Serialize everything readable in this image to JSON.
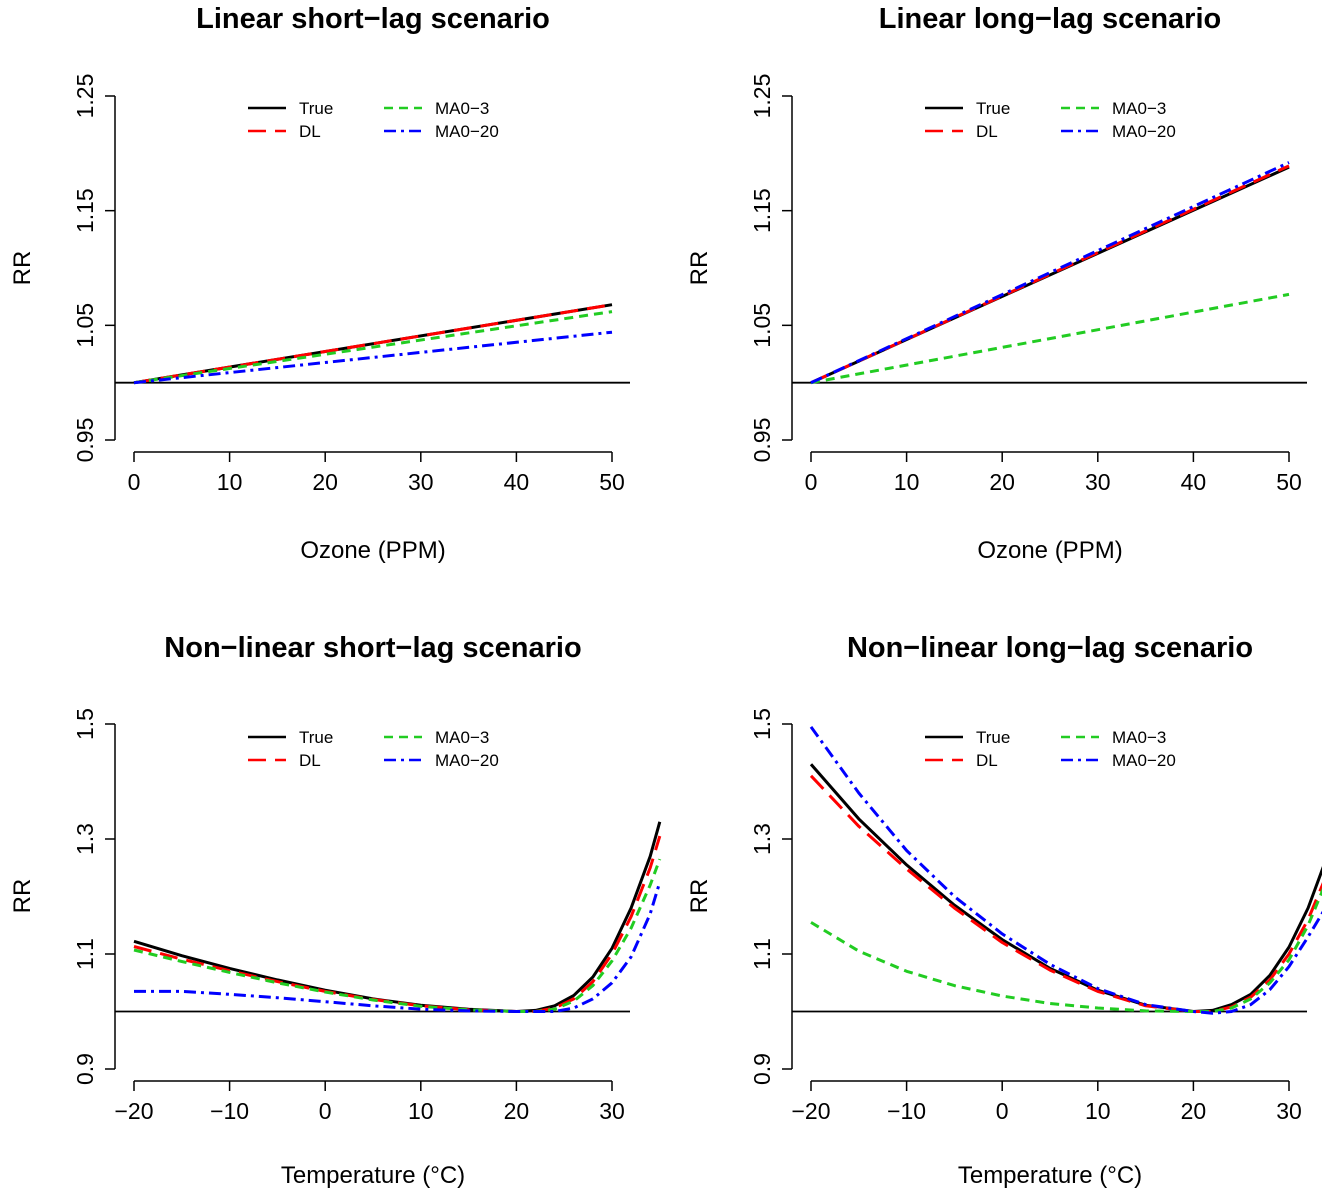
{
  "chart_data": [
    {
      "type": "line",
      "title": "Linear short−lag scenario",
      "xlabel": "Ozone (PPM)",
      "ylabel": "RR",
      "xlim": [
        0,
        50
      ],
      "ylim": [
        0.95,
        1.25
      ],
      "xticks": [
        "0",
        "10",
        "20",
        "30",
        "40",
        "50"
      ],
      "yticks": [
        "0.95",
        "1.05",
        "1.15",
        "1.25"
      ],
      "reference_line": 1.0,
      "legend": [
        "True",
        "DL",
        "MA0−3",
        "MA0−20"
      ],
      "series": [
        {
          "name": "True",
          "color": "#000000",
          "x": [
            0,
            50
          ],
          "y": [
            1.0,
            1.068
          ]
        },
        {
          "name": "DL",
          "color": "#ff0000",
          "x": [
            0,
            50
          ],
          "y": [
            1.0,
            1.068
          ]
        },
        {
          "name": "MA0−3",
          "color": "#22cc22",
          "x": [
            0,
            50
          ],
          "y": [
            1.0,
            1.062
          ]
        },
        {
          "name": "MA0−20",
          "color": "#0000ff",
          "x": [
            0,
            50
          ],
          "y": [
            1.0,
            1.044
          ]
        }
      ]
    },
    {
      "type": "line",
      "title": "Linear long−lag scenario",
      "xlabel": "Ozone (PPM)",
      "ylabel": "RR",
      "xlim": [
        0,
        50
      ],
      "ylim": [
        0.95,
        1.25
      ],
      "xticks": [
        "0",
        "10",
        "20",
        "30",
        "40",
        "50"
      ],
      "yticks": [
        "0.95",
        "1.05",
        "1.15",
        "1.25"
      ],
      "reference_line": 1.0,
      "legend": [
        "True",
        "DL",
        "MA0−3",
        "MA0−20"
      ],
      "series": [
        {
          "name": "True",
          "color": "#000000",
          "x": [
            0,
            50
          ],
          "y": [
            1.0,
            1.188
          ]
        },
        {
          "name": "DL",
          "color": "#ff0000",
          "x": [
            0,
            50
          ],
          "y": [
            1.0,
            1.189
          ]
        },
        {
          "name": "MA0−3",
          "color": "#22cc22",
          "x": [
            0,
            50
          ],
          "y": [
            1.0,
            1.077
          ]
        },
        {
          "name": "MA0−20",
          "color": "#0000ff",
          "x": [
            0,
            50
          ],
          "y": [
            1.0,
            1.192
          ]
        }
      ]
    },
    {
      "type": "line",
      "title": "Non−linear short−lag scenario",
      "xlabel": "Temperature (°C)",
      "ylabel": "RR",
      "xlim": [
        -20,
        35
      ],
      "ylim": [
        0.9,
        1.5
      ],
      "xticks": [
        "−20",
        "−10",
        "0",
        "10",
        "20",
        "30"
      ],
      "yticks": [
        "0.9",
        "1.1",
        "1.3",
        "1.5"
      ],
      "reference_line": 1.0,
      "legend": [
        "True",
        "DL",
        "MA0−3",
        "MA0−20"
      ],
      "series": [
        {
          "name": "True",
          "color": "#000000",
          "x": [
            -20,
            -15,
            -10,
            -5,
            0,
            5,
            10,
            15,
            20,
            22,
            24,
            26,
            28,
            30,
            32,
            34,
            35
          ],
          "y": [
            1.122,
            1.097,
            1.075,
            1.055,
            1.037,
            1.022,
            1.011,
            1.004,
            1.0,
            1.002,
            1.01,
            1.028,
            1.06,
            1.11,
            1.18,
            1.27,
            1.33
          ]
        },
        {
          "name": "DL",
          "color": "#ff0000",
          "x": [
            -20,
            -15,
            -10,
            -5,
            0,
            5,
            10,
            15,
            20,
            22,
            24,
            26,
            28,
            30,
            32,
            34,
            35
          ],
          "y": [
            1.113,
            1.091,
            1.071,
            1.052,
            1.035,
            1.021,
            1.01,
            1.003,
            1.0,
            1.0,
            1.006,
            1.022,
            1.052,
            1.1,
            1.165,
            1.25,
            1.305
          ]
        },
        {
          "name": "MA0−3",
          "color": "#22cc22",
          "x": [
            -20,
            -15,
            -10,
            -5,
            0,
            5,
            10,
            15,
            20,
            22,
            24,
            26,
            28,
            30,
            32,
            34,
            35
          ],
          "y": [
            1.107,
            1.087,
            1.068,
            1.05,
            1.034,
            1.02,
            1.009,
            1.003,
            1.0,
            1.0,
            1.004,
            1.018,
            1.045,
            1.088,
            1.145,
            1.22,
            1.265
          ]
        },
        {
          "name": "MA0−20",
          "color": "#0000ff",
          "x": [
            -20,
            -15,
            -10,
            -5,
            0,
            5,
            10,
            15,
            20,
            22,
            24,
            26,
            28,
            30,
            32,
            34,
            35
          ],
          "y": [
            1.035,
            1.035,
            1.03,
            1.024,
            1.017,
            1.01,
            1.004,
            1.001,
            1.0,
            1.0,
            1.0,
            1.006,
            1.022,
            1.05,
            1.095,
            1.17,
            1.225
          ]
        }
      ]
    },
    {
      "type": "line",
      "title": "Non−linear long−lag scenario",
      "xlabel": "Temperature (°C)",
      "ylabel": "RR",
      "xlim": [
        -20,
        35
      ],
      "ylim": [
        0.9,
        1.5
      ],
      "xticks": [
        "−20",
        "−10",
        "0",
        "10",
        "20",
        "30"
      ],
      "yticks": [
        "0.9",
        "1.1",
        "1.3",
        "1.5"
      ],
      "reference_line": 1.0,
      "legend": [
        "True",
        "DL",
        "MA0−3",
        "MA0−20"
      ],
      "series": [
        {
          "name": "True",
          "color": "#000000",
          "x": [
            -20,
            -15,
            -10,
            -5,
            0,
            5,
            10,
            15,
            20,
            22,
            24,
            26,
            28,
            30,
            32,
            34,
            35
          ],
          "y": [
            1.43,
            1.335,
            1.255,
            1.185,
            1.125,
            1.075,
            1.037,
            1.011,
            1.0,
            1.002,
            1.012,
            1.03,
            1.063,
            1.112,
            1.18,
            1.27,
            1.33
          ]
        },
        {
          "name": "DL",
          "color": "#ff0000",
          "x": [
            -20,
            -15,
            -10,
            -5,
            0,
            5,
            10,
            15,
            20,
            22,
            24,
            26,
            28,
            30,
            32,
            34,
            35
          ],
          "y": [
            1.41,
            1.322,
            1.248,
            1.18,
            1.12,
            1.072,
            1.035,
            1.01,
            1.0,
            1.0,
            1.008,
            1.025,
            1.055,
            1.1,
            1.16,
            1.24,
            1.285
          ]
        },
        {
          "name": "MA0−3",
          "color": "#22cc22",
          "x": [
            -20,
            -15,
            -10,
            -5,
            0,
            5,
            10,
            15,
            20,
            22,
            24,
            26,
            28,
            30,
            32,
            34,
            35
          ],
          "y": [
            1.155,
            1.105,
            1.07,
            1.045,
            1.027,
            1.014,
            1.006,
            1.001,
            1.0,
            1.0,
            1.006,
            1.022,
            1.05,
            1.09,
            1.15,
            1.23,
            1.27
          ]
        },
        {
          "name": "MA0−20",
          "color": "#0000ff",
          "x": [
            -20,
            -15,
            -10,
            -5,
            0,
            5,
            10,
            15,
            20,
            22,
            24,
            26,
            28,
            30,
            32,
            34,
            35
          ],
          "y": [
            1.495,
            1.38,
            1.28,
            1.2,
            1.135,
            1.082,
            1.04,
            1.012,
            1.0,
            0.997,
            1.0,
            1.012,
            1.038,
            1.078,
            1.13,
            1.185,
            1.21
          ]
        }
      ]
    }
  ]
}
